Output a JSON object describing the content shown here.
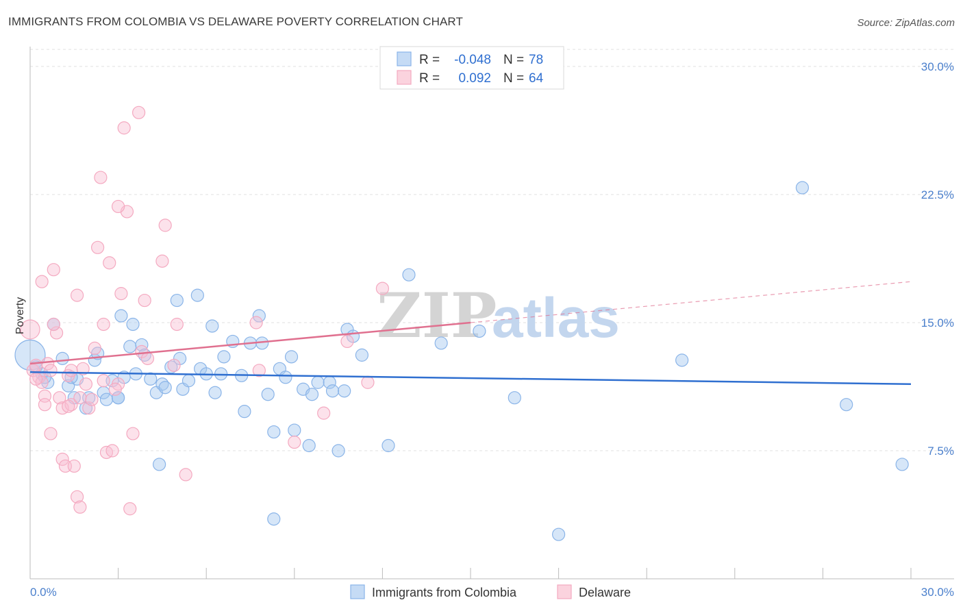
{
  "title": "IMMIGRANTS FROM COLOMBIA VS DELAWARE POVERTY CORRELATION CHART",
  "source": "Source: ZipAtlas.com",
  "watermark": {
    "zip": "ZIP",
    "atlas": "atlas"
  },
  "legend": {
    "rows": [
      {
        "r_label": "R =",
        "r_value": "-0.048",
        "n_label": "N =",
        "n_value": "78"
      },
      {
        "r_label": "R =",
        "r_value": "0.092",
        "n_label": "N =",
        "n_value": "64"
      }
    ]
  },
  "bottom_legend": [
    "Immigrants from Colombia",
    "Delaware"
  ],
  "chart_data": {
    "type": "scatter",
    "xlabel": "",
    "ylabel": "Poverty",
    "xlim": [
      0,
      30
    ],
    "ylim": [
      0,
      31
    ],
    "x_tick_labels": [
      "0.0%",
      "30.0%"
    ],
    "y_ticks": [
      7.5,
      15.0,
      22.5,
      30.0
    ],
    "y_tick_labels": [
      "7.5%",
      "15.0%",
      "22.5%",
      "30.0%"
    ],
    "grid": true,
    "series": [
      {
        "name": "Immigrants from Colombia",
        "color": "#8ab4e8",
        "trend_color": "#2f6fd0",
        "trend": {
          "x0": 0,
          "y0": 12.1,
          "x1": 30,
          "y1": 11.4
        },
        "points": [
          [
            0.0,
            13.1
          ],
          [
            0.2,
            12.4
          ],
          [
            0.4,
            12.0
          ],
          [
            0.6,
            11.5
          ],
          [
            0.8,
            14.9
          ],
          [
            1.1,
            12.9
          ],
          [
            1.3,
            11.3
          ],
          [
            1.5,
            10.6
          ],
          [
            1.6,
            11.7
          ],
          [
            1.9,
            10.0
          ],
          [
            2.0,
            10.6
          ],
          [
            2.2,
            12.8
          ],
          [
            2.3,
            13.2
          ],
          [
            2.5,
            10.9
          ],
          [
            2.6,
            10.5
          ],
          [
            2.8,
            11.6
          ],
          [
            3.0,
            10.6
          ],
          [
            3.1,
            15.4
          ],
          [
            3.2,
            11.8
          ],
          [
            3.4,
            13.6
          ],
          [
            3.5,
            14.9
          ],
          [
            3.6,
            12.0
          ],
          [
            3.8,
            13.7
          ],
          [
            3.9,
            13.1
          ],
          [
            4.1,
            11.7
          ],
          [
            4.3,
            10.9
          ],
          [
            4.5,
            11.4
          ],
          [
            4.6,
            11.2
          ],
          [
            4.8,
            12.4
          ],
          [
            5.0,
            16.3
          ],
          [
            5.1,
            12.9
          ],
          [
            5.2,
            11.1
          ],
          [
            5.4,
            11.6
          ],
          [
            5.7,
            16.6
          ],
          [
            5.8,
            12.3
          ],
          [
            6.0,
            12.0
          ],
          [
            6.2,
            14.8
          ],
          [
            6.3,
            10.9
          ],
          [
            6.5,
            12.0
          ],
          [
            6.6,
            13.0
          ],
          [
            6.9,
            13.9
          ],
          [
            7.2,
            11.9
          ],
          [
            7.3,
            9.8
          ],
          [
            7.5,
            13.8
          ],
          [
            7.8,
            15.4
          ],
          [
            7.9,
            13.8
          ],
          [
            8.1,
            10.8
          ],
          [
            8.3,
            8.6
          ],
          [
            8.5,
            12.3
          ],
          [
            8.7,
            11.8
          ],
          [
            8.9,
            13.0
          ],
          [
            9.0,
            8.7
          ],
          [
            9.3,
            11.1
          ],
          [
            9.5,
            7.8
          ],
          [
            9.6,
            10.8
          ],
          [
            9.8,
            11.5
          ],
          [
            10.2,
            11.5
          ],
          [
            10.3,
            11.0
          ],
          [
            10.5,
            7.5
          ],
          [
            10.7,
            11.0
          ],
          [
            10.8,
            14.6
          ],
          [
            11.0,
            14.2
          ],
          [
            11.3,
            13.1
          ],
          [
            12.2,
            7.8
          ],
          [
            12.9,
            17.8
          ],
          [
            14.0,
            13.8
          ],
          [
            15.3,
            14.5
          ],
          [
            16.5,
            10.6
          ],
          [
            18.0,
            2.6
          ],
          [
            22.2,
            12.8
          ],
          [
            26.3,
            22.9
          ],
          [
            27.8,
            10.2
          ],
          [
            29.7,
            6.7
          ],
          [
            4.4,
            6.7
          ],
          [
            8.3,
            3.5
          ],
          [
            1.4,
            11.8
          ],
          [
            0.5,
            11.8
          ],
          [
            3.0,
            10.6
          ]
        ]
      },
      {
        "name": "Delaware",
        "color": "#f4a9c0",
        "trend_color": "#e0708f",
        "trend": {
          "x0": 0,
          "y0": 12.6,
          "x1": 15,
          "y1": 15.0
        },
        "trend_dashed": {
          "x0": 15,
          "y0": 15.0,
          "x1": 30,
          "y1": 17.4
        },
        "points": [
          [
            0.0,
            14.6
          ],
          [
            0.1,
            12.2
          ],
          [
            0.2,
            12.5
          ],
          [
            0.3,
            11.8
          ],
          [
            0.4,
            11.5
          ],
          [
            0.5,
            10.7
          ],
          [
            0.5,
            10.2
          ],
          [
            0.6,
            12.6
          ],
          [
            0.7,
            8.5
          ],
          [
            0.7,
            12.2
          ],
          [
            0.8,
            18.1
          ],
          [
            0.9,
            14.4
          ],
          [
            1.0,
            10.6
          ],
          [
            1.1,
            10.0
          ],
          [
            1.1,
            7.0
          ],
          [
            1.2,
            6.6
          ],
          [
            1.3,
            11.9
          ],
          [
            1.4,
            10.2
          ],
          [
            1.5,
            6.6
          ],
          [
            1.6,
            16.6
          ],
          [
            1.7,
            10.6
          ],
          [
            1.8,
            12.3
          ],
          [
            1.9,
            11.4
          ],
          [
            2.0,
            10.0
          ],
          [
            2.1,
            10.5
          ],
          [
            2.2,
            13.5
          ],
          [
            2.3,
            19.4
          ],
          [
            2.4,
            23.5
          ],
          [
            2.5,
            14.9
          ],
          [
            2.6,
            7.4
          ],
          [
            2.7,
            18.5
          ],
          [
            2.8,
            7.5
          ],
          [
            3.0,
            11.4
          ],
          [
            3.1,
            16.7
          ],
          [
            3.2,
            26.4
          ],
          [
            3.3,
            21.5
          ],
          [
            3.4,
            4.1
          ],
          [
            3.5,
            8.5
          ],
          [
            3.7,
            27.3
          ],
          [
            3.8,
            13.3
          ],
          [
            3.9,
            16.3
          ],
          [
            4.0,
            12.9
          ],
          [
            4.5,
            18.6
          ],
          [
            4.6,
            20.7
          ],
          [
            4.9,
            12.5
          ],
          [
            5.0,
            14.9
          ],
          [
            5.3,
            6.1
          ],
          [
            7.7,
            15.0
          ],
          [
            7.8,
            12.2
          ],
          [
            9.0,
            8.0
          ],
          [
            10.0,
            9.7
          ],
          [
            10.8,
            13.9
          ],
          [
            11.5,
            11.5
          ],
          [
            12.0,
            17.0
          ],
          [
            0.4,
            17.4
          ],
          [
            1.3,
            10.1
          ],
          [
            2.9,
            11.1
          ],
          [
            0.2,
            11.7
          ],
          [
            1.6,
            4.8
          ],
          [
            1.7,
            4.2
          ],
          [
            3.0,
            21.8
          ],
          [
            2.5,
            11.6
          ],
          [
            1.4,
            12.2
          ],
          [
            0.8,
            14.9
          ]
        ]
      }
    ]
  }
}
